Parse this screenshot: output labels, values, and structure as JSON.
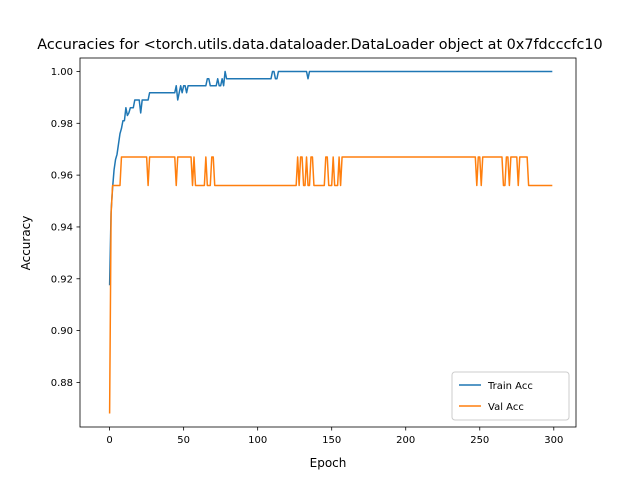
{
  "chart_data": {
    "type": "line",
    "title": "Accuracies for <torch.utils.data.dataloader.DataLoader object at 0x7fdcccfc10",
    "xlabel": "Epoch",
    "ylabel": "Accuracy",
    "xlim": [
      -20,
      315
    ],
    "ylim": [
      0.8628,
      1.0052
    ],
    "xticks": [
      0,
      50,
      100,
      150,
      200,
      250,
      300
    ],
    "yticks": [
      0.88,
      0.9,
      0.92,
      0.94,
      0.96,
      0.98,
      1.0
    ],
    "xtick_labels": [
      "0",
      "50",
      "100",
      "150",
      "200",
      "250",
      "300"
    ],
    "ytick_labels": [
      "0.88",
      "0.90",
      "0.92",
      "0.94",
      "0.96",
      "0.98",
      "1.00"
    ],
    "legend_position": "lower-right",
    "grid": false,
    "series": [
      {
        "name": "Train Acc",
        "color": "#1f77b4",
        "points": [
          [
            0,
            0.9175
          ],
          [
            1,
            0.946
          ],
          [
            2,
            0.955
          ],
          [
            3,
            0.962
          ],
          [
            4,
            0.966
          ],
          [
            5,
            0.968
          ],
          [
            6,
            0.972
          ],
          [
            7,
            0.976
          ],
          [
            8,
            0.978
          ],
          [
            9,
            0.981
          ],
          [
            10,
            0.981
          ],
          [
            11,
            0.986
          ],
          [
            12,
            0.983
          ],
          [
            13,
            0.984
          ],
          [
            14,
            0.986
          ],
          [
            16,
            0.986
          ],
          [
            17,
            0.989
          ],
          [
            18,
            0.989
          ],
          [
            19,
            0.989
          ],
          [
            20,
            0.989
          ],
          [
            21,
            0.984
          ],
          [
            22,
            0.989
          ],
          [
            23,
            0.989
          ],
          [
            24,
            0.989
          ],
          [
            25,
            0.989
          ],
          [
            26,
            0.989
          ],
          [
            27,
            0.9918
          ],
          [
            30,
            0.9918
          ],
          [
            35,
            0.9918
          ],
          [
            40,
            0.9918
          ],
          [
            44,
            0.9918
          ],
          [
            45,
            0.9945
          ],
          [
            46,
            0.989
          ],
          [
            47,
            0.9918
          ],
          [
            48,
            0.9945
          ],
          [
            49,
            0.9918
          ],
          [
            50,
            0.9945
          ],
          [
            51,
            0.9945
          ],
          [
            52,
            0.9918
          ],
          [
            53,
            0.9945
          ],
          [
            55,
            0.9945
          ],
          [
            60,
            0.9945
          ],
          [
            65,
            0.9945
          ],
          [
            66,
            0.9972
          ],
          [
            67,
            0.9972
          ],
          [
            68,
            0.9945
          ],
          [
            70,
            0.9945
          ],
          [
            72,
            0.9945
          ],
          [
            73,
            0.9972
          ],
          [
            74,
            0.9945
          ],
          [
            75,
            0.9945
          ],
          [
            76,
            0.9972
          ],
          [
            77,
            0.9945
          ],
          [
            78,
            1.0
          ],
          [
            79,
            0.9972
          ],
          [
            80,
            0.9972
          ],
          [
            90,
            0.9972
          ],
          [
            100,
            0.9972
          ],
          [
            109,
            0.9972
          ],
          [
            110,
            1.0
          ],
          [
            111,
            1.0
          ],
          [
            112,
            0.9972
          ],
          [
            113,
            0.9972
          ],
          [
            114,
            1.0
          ],
          [
            120,
            1.0
          ],
          [
            130,
            1.0
          ],
          [
            133,
            1.0
          ],
          [
            134,
            0.9972
          ],
          [
            135,
            1.0
          ],
          [
            150,
            1.0
          ],
          [
            200,
            1.0
          ],
          [
            250,
            1.0
          ],
          [
            299,
            1.0
          ]
        ]
      },
      {
        "name": "Val Acc",
        "color": "#ff7f0e",
        "points": [
          [
            0,
            0.868
          ],
          [
            1,
            0.945
          ],
          [
            2,
            0.956
          ],
          [
            3,
            0.956
          ],
          [
            4,
            0.956
          ],
          [
            5,
            0.956
          ],
          [
            6,
            0.956
          ],
          [
            7,
            0.956
          ],
          [
            8,
            0.967
          ],
          [
            10,
            0.967
          ],
          [
            15,
            0.967
          ],
          [
            20,
            0.967
          ],
          [
            25,
            0.967
          ],
          [
            26,
            0.956
          ],
          [
            27,
            0.967
          ],
          [
            30,
            0.967
          ],
          [
            40,
            0.967
          ],
          [
            44,
            0.967
          ],
          [
            45,
            0.956
          ],
          [
            46,
            0.967
          ],
          [
            50,
            0.967
          ],
          [
            55,
            0.967
          ],
          [
            56,
            0.956
          ],
          [
            57,
            0.967
          ],
          [
            58,
            0.956
          ],
          [
            59,
            0.956
          ],
          [
            60,
            0.956
          ],
          [
            64,
            0.956
          ],
          [
            65,
            0.967
          ],
          [
            66,
            0.956
          ],
          [
            67,
            0.956
          ],
          [
            68,
            0.956
          ],
          [
            69,
            0.967
          ],
          [
            70,
            0.967
          ],
          [
            71,
            0.956
          ],
          [
            72,
            0.956
          ],
          [
            80,
            0.956
          ],
          [
            100,
            0.956
          ],
          [
            120,
            0.956
          ],
          [
            126,
            0.956
          ],
          [
            127,
            0.967
          ],
          [
            128,
            0.956
          ],
          [
            129,
            0.967
          ],
          [
            130,
            0.967
          ],
          [
            131,
            0.956
          ],
          [
            132,
            0.956
          ],
          [
            133,
            0.967
          ],
          [
            134,
            0.956
          ],
          [
            135,
            0.956
          ],
          [
            136,
            0.967
          ],
          [
            137,
            0.967
          ],
          [
            138,
            0.956
          ],
          [
            140,
            0.956
          ],
          [
            145,
            0.956
          ],
          [
            146,
            0.967
          ],
          [
            147,
            0.967
          ],
          [
            148,
            0.956
          ],
          [
            150,
            0.956
          ],
          [
            151,
            0.967
          ],
          [
            152,
            0.956
          ],
          [
            153,
            0.956
          ],
          [
            154,
            0.956
          ],
          [
            155,
            0.967
          ],
          [
            156,
            0.956
          ],
          [
            157,
            0.967
          ],
          [
            160,
            0.967
          ],
          [
            180,
            0.967
          ],
          [
            200,
            0.967
          ],
          [
            220,
            0.967
          ],
          [
            240,
            0.967
          ],
          [
            247,
            0.967
          ],
          [
            248,
            0.956
          ],
          [
            249,
            0.967
          ],
          [
            250,
            0.967
          ],
          [
            251,
            0.956
          ],
          [
            252,
            0.967
          ],
          [
            255,
            0.967
          ],
          [
            260,
            0.967
          ],
          [
            265,
            0.967
          ],
          [
            266,
            0.956
          ],
          [
            267,
            0.956
          ],
          [
            268,
            0.967
          ],
          [
            269,
            0.967
          ],
          [
            270,
            0.956
          ],
          [
            271,
            0.967
          ],
          [
            272,
            0.967
          ],
          [
            275,
            0.967
          ],
          [
            276,
            0.956
          ],
          [
            277,
            0.967
          ],
          [
            280,
            0.967
          ],
          [
            282,
            0.967
          ],
          [
            283,
            0.956
          ],
          [
            290,
            0.956
          ],
          [
            299,
            0.956
          ]
        ]
      }
    ]
  }
}
